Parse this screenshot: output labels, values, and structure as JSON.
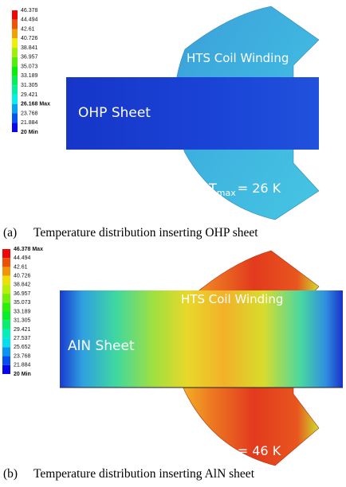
{
  "panels": [
    {
      "legend": [
        "46.378",
        "44.494",
        "42.61",
        "40.726",
        "38.841",
        "36.957",
        "35.073",
        "33.189",
        "31.305",
        "29.421",
        "26.168 Max",
        "23.768",
        "21.884",
        "20 Min"
      ],
      "labels": {
        "coil": "HTS Coil Winding",
        "sheet": "OHP Sheet"
      },
      "tmax": {
        "symbol": "T",
        "subscript": "max",
        "value": "= 26 K"
      },
      "caption": {
        "label": "(a)",
        "text": "Temperature distribution inserting OHP sheet"
      }
    },
    {
      "legend": [
        "46.378 Max",
        "44.494",
        "42.61",
        "40.726",
        "38.842",
        "36.957",
        "35.073",
        "33.189",
        "31.305",
        "29.421",
        "27.537",
        "25.652",
        "23.768",
        "21.884",
        "20 Min"
      ],
      "labels": {
        "coil": "HTS Coil Winding",
        "sheet": "AlN Sheet"
      },
      "tmax": {
        "symbol": "T",
        "subscript": "max",
        "value": "= 46 K"
      },
      "caption": {
        "label": "(b)",
        "text": "Temperature distribution inserting AlN sheet"
      }
    }
  ]
}
